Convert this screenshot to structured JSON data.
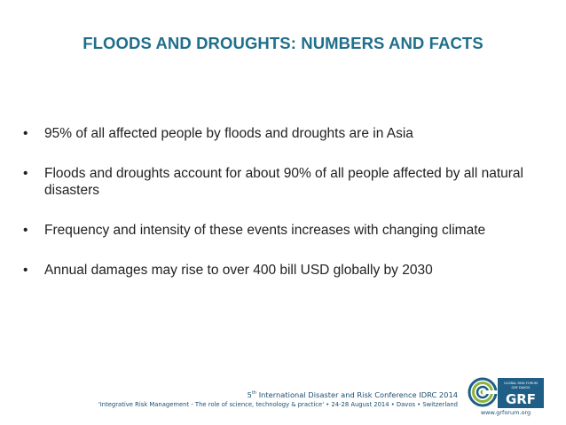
{
  "slide": {
    "title": "FLOODS AND DROUGHTS: NUMBERS AND FACTS",
    "bullets": [
      "95% of all affected people by floods and droughts are in Asia",
      "Floods and droughts account for about 90% of all people affected by all natural disasters",
      "Frequency and intensity of these events increases with changing climate",
      "Annual damages may rise to over 400 bill USD globally by 2030"
    ],
    "bullet_symbol": "•"
  },
  "footer": {
    "conference_ordinal": "5",
    "conference_ordinal_suffix": "th",
    "conference_name": " International Disaster and Risk Conference IDRC 2014",
    "tagline": "'Integrative Risk Management - The role of science, technology & practice' • 24-28 August 2014 • Davos • Switzerland"
  },
  "logo": {
    "acronym": "GRF",
    "small_text_line1": "GLOBAL RISK FORUM",
    "small_text_line2": "GRF DAVOS",
    "url": "www.grforum.org",
    "colors": {
      "blue": "#1f5f87",
      "green": "#8db33a"
    }
  },
  "colors": {
    "title": "#1f6f8b",
    "body_text": "#222222",
    "footer_text": "#1a4d6e"
  }
}
